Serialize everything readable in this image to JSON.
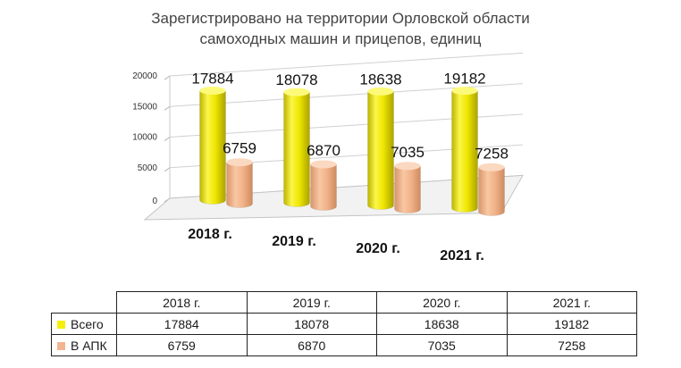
{
  "chart_data": {
    "type": "bar",
    "title": "Зарегистрировано на территории Орловской области",
    "subtitle": "самоходных машин и прицепов, единиц",
    "categories": [
      "2018 г.",
      "2019 г.",
      "2020 г.",
      "2021 г."
    ],
    "series": [
      {
        "name": "Всего",
        "values": [
          17884,
          18078,
          18638,
          19182
        ]
      },
      {
        "name": "В АПК",
        "values": [
          6759,
          6870,
          7035,
          7258
        ]
      }
    ],
    "y_ticks": [
      "0",
      "5000",
      "10000",
      "15000",
      "20000"
    ],
    "ylim": [
      0,
      20000
    ],
    "grid": true,
    "legend": "data-table-below",
    "colors": {
      "total": "#f6ef0c",
      "apk": "#f2b58f"
    }
  }
}
